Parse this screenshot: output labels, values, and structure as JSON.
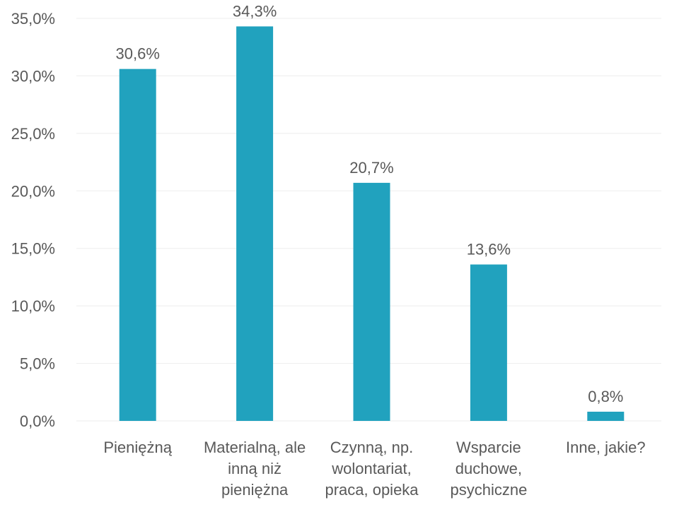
{
  "chart_data": {
    "type": "bar",
    "title": "",
    "xlabel": "",
    "ylabel": "",
    "categories": [
      "Pieniężną",
      "Materialną, ale inną niż pieniężna",
      "Czynną, np. wolontariat, praca, opieka",
      "Wsparcie duchowe, psychiczne",
      "Inne, jakie?"
    ],
    "category_lines": [
      [
        "Pieniężną"
      ],
      [
        "Materialną, ale",
        "inną niż",
        "pieniężna"
      ],
      [
        "Czynną, np.",
        "wolontariat,",
        "praca, opieka"
      ],
      [
        "Wsparcie",
        "duchowe,",
        "psychiczne"
      ],
      [
        "Inne, jakie?"
      ]
    ],
    "values": [
      30.6,
      34.3,
      20.7,
      13.6,
      0.8
    ],
    "value_labels": [
      "30,6%",
      "34,3%",
      "20,7%",
      "13,6%",
      "0,8%"
    ],
    "ylim": [
      0,
      35
    ],
    "yticks": [
      0,
      5,
      10,
      15,
      20,
      25,
      30,
      35
    ],
    "ytick_labels": [
      "0,0%",
      "5,0%",
      "10,0%",
      "15,0%",
      "20,0%",
      "25,0%",
      "30,0%",
      "35,0%"
    ],
    "grid": true,
    "legend": "none",
    "bar_color": "#21A2BE",
    "grid_color": "#EDEDED",
    "text_color": "#595959"
  }
}
